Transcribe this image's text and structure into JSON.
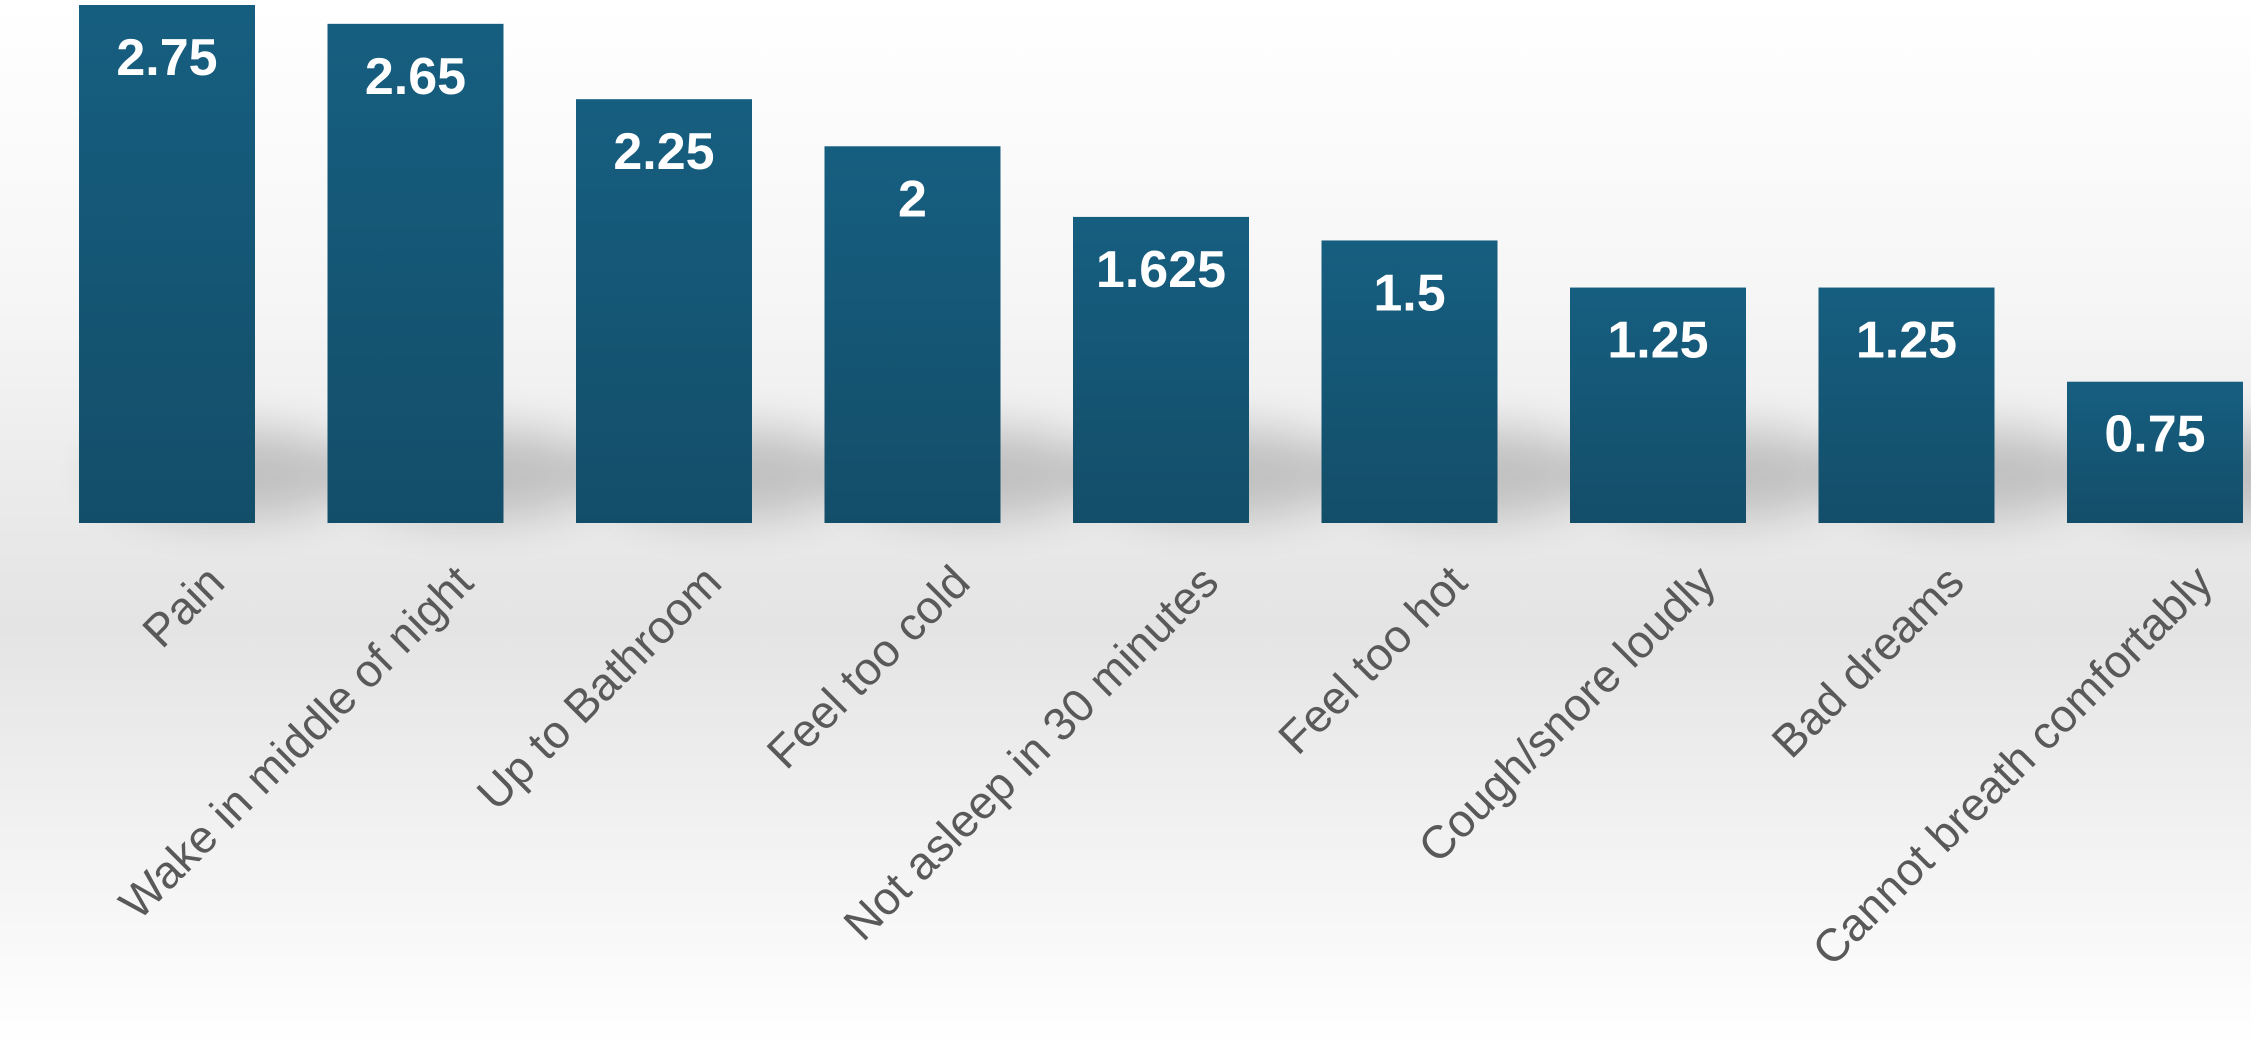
{
  "chart_data": {
    "type": "bar",
    "title": "",
    "xlabel": "",
    "ylabel": "",
    "ylim": [
      0,
      2.75
    ],
    "grid": false,
    "legend": "none",
    "bar_color": "#165E80",
    "bar_color_dark": "#134E69",
    "label_color": "#595959",
    "categories": [
      "Pain",
      "Wake in middle of night",
      "Up to Bathroom",
      "Feel too cold",
      "Not asleep in 30 minutes",
      "Feel too hot",
      "Cough/snore loudly",
      "Bad dreams",
      "Cannot breath comfortably"
    ],
    "values": [
      2.75,
      2.65,
      2.25,
      2,
      1.625,
      1.5,
      1.25,
      1.25,
      0.75
    ],
    "value_labels": [
      "2.75",
      "2.65",
      "2.25",
      "2",
      "1.625",
      "1.5",
      "1.25",
      "1.25",
      "0.75"
    ]
  }
}
